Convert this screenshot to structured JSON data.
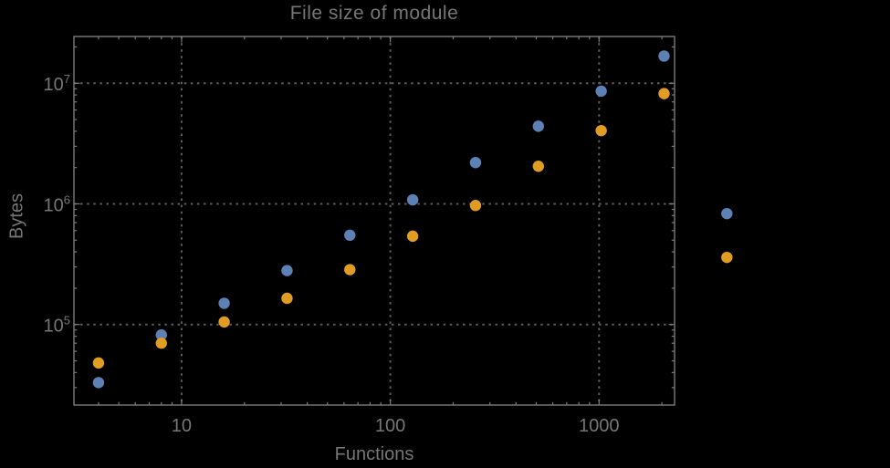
{
  "chart_data": {
    "type": "scatter",
    "title": "File size of module",
    "xlabel": "Functions",
    "ylabel": "Bytes",
    "xscale": "log",
    "yscale": "log",
    "grid": true,
    "legend": "none",
    "background": "#000000",
    "frame_color": "#7b7b7b",
    "text_color": "#767676",
    "gridline_color": "#5d5d5d",
    "xlim": [
      3.05,
      2300
    ],
    "ylim": [
      21500,
      24400000
    ],
    "x_ticks": [
      {
        "v": 10,
        "label": "10"
      },
      {
        "v": 100,
        "label": "100"
      },
      {
        "v": 1000,
        "label": "1000"
      }
    ],
    "y_ticks": [
      {
        "v": 100000,
        "base": "10",
        "exp": "5"
      },
      {
        "v": 1000000,
        "base": "10",
        "exp": "6"
      },
      {
        "v": 10000000,
        "base": "10",
        "exp": "7"
      }
    ],
    "note": "points at x=4096 are drawn outside the plot frame (no clipping)",
    "series": [
      {
        "id": "blue-series",
        "color": "#5e81b5",
        "points": [
          [
            4,
            33000
          ],
          [
            8,
            82000
          ],
          [
            16,
            150000
          ],
          [
            32,
            280000
          ],
          [
            64,
            550000
          ],
          [
            128,
            1080000
          ],
          [
            256,
            2200000
          ],
          [
            512,
            4400000
          ],
          [
            1024,
            8600000
          ],
          [
            2048,
            16800000
          ],
          [
            4096,
            830000
          ]
        ]
      },
      {
        "id": "orange-series",
        "color": "#e19c24",
        "points": [
          [
            4,
            48000
          ],
          [
            8,
            70000
          ],
          [
            16,
            105000
          ],
          [
            32,
            165000
          ],
          [
            64,
            285000
          ],
          [
            128,
            540000
          ],
          [
            256,
            970000
          ],
          [
            512,
            2050000
          ],
          [
            1024,
            4050000
          ],
          [
            2048,
            8200000
          ],
          [
            4096,
            360000
          ]
        ]
      }
    ]
  }
}
